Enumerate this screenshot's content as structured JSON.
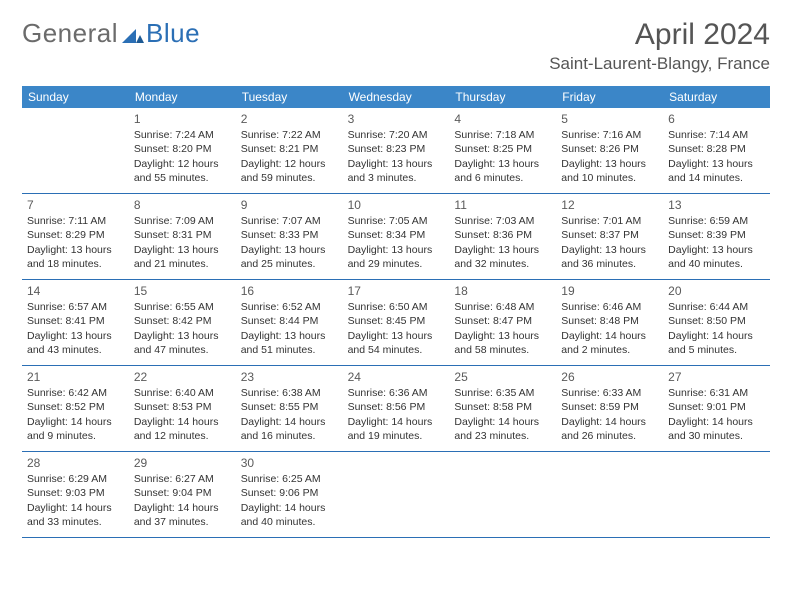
{
  "brand": {
    "part1": "General",
    "part2": "Blue"
  },
  "title": {
    "month": "April 2024",
    "location": "Saint-Laurent-Blangy, France"
  },
  "colors": {
    "header_bg": "#3b86c8",
    "border": "#2b6fb5",
    "brand_gray": "#6b6b6b",
    "brand_blue": "#2b6fb5",
    "text": "#333333",
    "bg": "#ffffff"
  },
  "dow": [
    "Sunday",
    "Monday",
    "Tuesday",
    "Wednesday",
    "Thursday",
    "Friday",
    "Saturday"
  ],
  "cells": [
    {
      "num": "",
      "sunrise": "",
      "sunset": "",
      "daylight": ""
    },
    {
      "num": "1",
      "sunrise": "Sunrise: 7:24 AM",
      "sunset": "Sunset: 8:20 PM",
      "daylight": "Daylight: 12 hours and 55 minutes."
    },
    {
      "num": "2",
      "sunrise": "Sunrise: 7:22 AM",
      "sunset": "Sunset: 8:21 PM",
      "daylight": "Daylight: 12 hours and 59 minutes."
    },
    {
      "num": "3",
      "sunrise": "Sunrise: 7:20 AM",
      "sunset": "Sunset: 8:23 PM",
      "daylight": "Daylight: 13 hours and 3 minutes."
    },
    {
      "num": "4",
      "sunrise": "Sunrise: 7:18 AM",
      "sunset": "Sunset: 8:25 PM",
      "daylight": "Daylight: 13 hours and 6 minutes."
    },
    {
      "num": "5",
      "sunrise": "Sunrise: 7:16 AM",
      "sunset": "Sunset: 8:26 PM",
      "daylight": "Daylight: 13 hours and 10 minutes."
    },
    {
      "num": "6",
      "sunrise": "Sunrise: 7:14 AM",
      "sunset": "Sunset: 8:28 PM",
      "daylight": "Daylight: 13 hours and 14 minutes."
    },
    {
      "num": "7",
      "sunrise": "Sunrise: 7:11 AM",
      "sunset": "Sunset: 8:29 PM",
      "daylight": "Daylight: 13 hours and 18 minutes."
    },
    {
      "num": "8",
      "sunrise": "Sunrise: 7:09 AM",
      "sunset": "Sunset: 8:31 PM",
      "daylight": "Daylight: 13 hours and 21 minutes."
    },
    {
      "num": "9",
      "sunrise": "Sunrise: 7:07 AM",
      "sunset": "Sunset: 8:33 PM",
      "daylight": "Daylight: 13 hours and 25 minutes."
    },
    {
      "num": "10",
      "sunrise": "Sunrise: 7:05 AM",
      "sunset": "Sunset: 8:34 PM",
      "daylight": "Daylight: 13 hours and 29 minutes."
    },
    {
      "num": "11",
      "sunrise": "Sunrise: 7:03 AM",
      "sunset": "Sunset: 8:36 PM",
      "daylight": "Daylight: 13 hours and 32 minutes."
    },
    {
      "num": "12",
      "sunrise": "Sunrise: 7:01 AM",
      "sunset": "Sunset: 8:37 PM",
      "daylight": "Daylight: 13 hours and 36 minutes."
    },
    {
      "num": "13",
      "sunrise": "Sunrise: 6:59 AM",
      "sunset": "Sunset: 8:39 PM",
      "daylight": "Daylight: 13 hours and 40 minutes."
    },
    {
      "num": "14",
      "sunrise": "Sunrise: 6:57 AM",
      "sunset": "Sunset: 8:41 PM",
      "daylight": "Daylight: 13 hours and 43 minutes."
    },
    {
      "num": "15",
      "sunrise": "Sunrise: 6:55 AM",
      "sunset": "Sunset: 8:42 PM",
      "daylight": "Daylight: 13 hours and 47 minutes."
    },
    {
      "num": "16",
      "sunrise": "Sunrise: 6:52 AM",
      "sunset": "Sunset: 8:44 PM",
      "daylight": "Daylight: 13 hours and 51 minutes."
    },
    {
      "num": "17",
      "sunrise": "Sunrise: 6:50 AM",
      "sunset": "Sunset: 8:45 PM",
      "daylight": "Daylight: 13 hours and 54 minutes."
    },
    {
      "num": "18",
      "sunrise": "Sunrise: 6:48 AM",
      "sunset": "Sunset: 8:47 PM",
      "daylight": "Daylight: 13 hours and 58 minutes."
    },
    {
      "num": "19",
      "sunrise": "Sunrise: 6:46 AM",
      "sunset": "Sunset: 8:48 PM",
      "daylight": "Daylight: 14 hours and 2 minutes."
    },
    {
      "num": "20",
      "sunrise": "Sunrise: 6:44 AM",
      "sunset": "Sunset: 8:50 PM",
      "daylight": "Daylight: 14 hours and 5 minutes."
    },
    {
      "num": "21",
      "sunrise": "Sunrise: 6:42 AM",
      "sunset": "Sunset: 8:52 PM",
      "daylight": "Daylight: 14 hours and 9 minutes."
    },
    {
      "num": "22",
      "sunrise": "Sunrise: 6:40 AM",
      "sunset": "Sunset: 8:53 PM",
      "daylight": "Daylight: 14 hours and 12 minutes."
    },
    {
      "num": "23",
      "sunrise": "Sunrise: 6:38 AM",
      "sunset": "Sunset: 8:55 PM",
      "daylight": "Daylight: 14 hours and 16 minutes."
    },
    {
      "num": "24",
      "sunrise": "Sunrise: 6:36 AM",
      "sunset": "Sunset: 8:56 PM",
      "daylight": "Daylight: 14 hours and 19 minutes."
    },
    {
      "num": "25",
      "sunrise": "Sunrise: 6:35 AM",
      "sunset": "Sunset: 8:58 PM",
      "daylight": "Daylight: 14 hours and 23 minutes."
    },
    {
      "num": "26",
      "sunrise": "Sunrise: 6:33 AM",
      "sunset": "Sunset: 8:59 PM",
      "daylight": "Daylight: 14 hours and 26 minutes."
    },
    {
      "num": "27",
      "sunrise": "Sunrise: 6:31 AM",
      "sunset": "Sunset: 9:01 PM",
      "daylight": "Daylight: 14 hours and 30 minutes."
    },
    {
      "num": "28",
      "sunrise": "Sunrise: 6:29 AM",
      "sunset": "Sunset: 9:03 PM",
      "daylight": "Daylight: 14 hours and 33 minutes."
    },
    {
      "num": "29",
      "sunrise": "Sunrise: 6:27 AM",
      "sunset": "Sunset: 9:04 PM",
      "daylight": "Daylight: 14 hours and 37 minutes."
    },
    {
      "num": "30",
      "sunrise": "Sunrise: 6:25 AM",
      "sunset": "Sunset: 9:06 PM",
      "daylight": "Daylight: 14 hours and 40 minutes."
    },
    {
      "num": "",
      "sunrise": "",
      "sunset": "",
      "daylight": ""
    },
    {
      "num": "",
      "sunrise": "",
      "sunset": "",
      "daylight": ""
    },
    {
      "num": "",
      "sunrise": "",
      "sunset": "",
      "daylight": ""
    },
    {
      "num": "",
      "sunrise": "",
      "sunset": "",
      "daylight": ""
    }
  ]
}
